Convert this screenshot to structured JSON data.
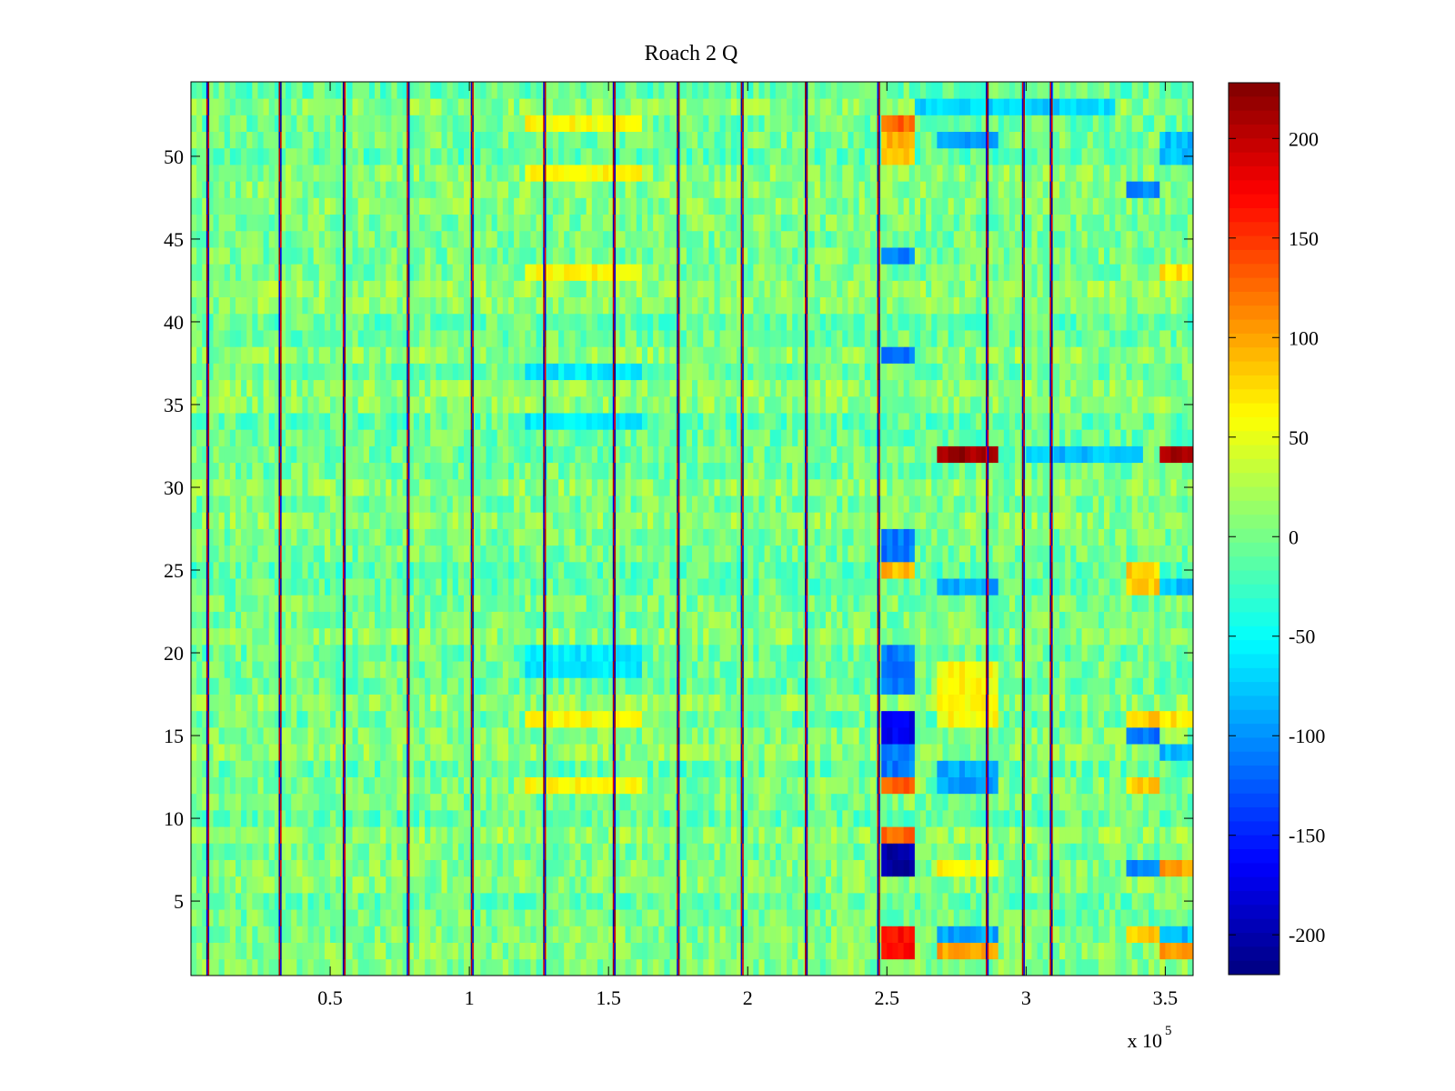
{
  "chart_data": [
    {
      "type": "heatmap",
      "title": "Roach 2 Q",
      "xlabel": "",
      "ylabel": "",
      "x_range": [
        0,
        360000
      ],
      "y_range": [
        0.5,
        54.5
      ],
      "x_multiplier_label": "x 10",
      "x_multiplier_exponent": "5",
      "x_ticks": [
        {
          "value": 0.5,
          "label": "0.5"
        },
        {
          "value": 1,
          "label": "1"
        },
        {
          "value": 1.5,
          "label": "1.5"
        },
        {
          "value": 2,
          "label": "2"
        },
        {
          "value": 2.5,
          "label": "2.5"
        },
        {
          "value": 3,
          "label": "3"
        },
        {
          "value": 3.5,
          "label": "3.5"
        }
      ],
      "y_ticks": [
        {
          "value": 5,
          "label": "5"
        },
        {
          "value": 10,
          "label": "10"
        },
        {
          "value": 15,
          "label": "15"
        },
        {
          "value": 20,
          "label": "20"
        },
        {
          "value": 25,
          "label": "25"
        },
        {
          "value": 30,
          "label": "30"
        },
        {
          "value": 35,
          "label": "35"
        },
        {
          "value": 40,
          "label": "40"
        },
        {
          "value": 45,
          "label": "45"
        },
        {
          "value": 50,
          "label": "50"
        }
      ],
      "channels": 54,
      "background_value": 0,
      "vertical_stripes_x": [
        0.06,
        0.32,
        0.55,
        0.78,
        1.01,
        1.27,
        1.52,
        1.75,
        1.98,
        2.21,
        2.47,
        2.86,
        2.99,
        3.09
      ],
      "bands": [
        {
          "x": [
            1.2,
            1.6
          ],
          "rows": [
            52,
            49,
            43,
            16,
            12
          ],
          "value": 60
        },
        {
          "x": [
            1.2,
            1.6
          ],
          "rows": [
            37,
            19,
            20,
            34
          ],
          "value": -60
        },
        {
          "x": [
            2.48,
            2.57
          ],
          "rows": [
            50,
            51,
            25
          ],
          "value": 90
        },
        {
          "x": [
            2.48,
            2.57
          ],
          "rows": [
            12,
            9,
            52
          ],
          "value": 130
        },
        {
          "x": [
            2.48,
            2.57
          ],
          "rows": [
            2,
            3
          ],
          "value": 170
        },
        {
          "x": [
            2.48,
            2.57
          ],
          "rows": [
            16,
            15
          ],
          "value": -170
        },
        {
          "x": [
            2.48,
            2.57
          ],
          "rows": [
            7,
            8
          ],
          "value": -200
        },
        {
          "x": [
            2.48,
            2.57
          ],
          "rows": [
            20,
            19,
            18,
            13,
            14,
            26,
            27,
            44,
            38
          ],
          "value": -110
        },
        {
          "x": [
            2.68,
            2.87
          ],
          "rows": [
            32
          ],
          "value": 215
        },
        {
          "x": [
            3.48,
            3.6
          ],
          "rows": [
            32
          ],
          "value": 215
        },
        {
          "x": [
            2.68,
            2.87
          ],
          "rows": [
            2
          ],
          "value": 100
        },
        {
          "x": [
            3.48,
            3.6
          ],
          "rows": [
            2,
            7
          ],
          "value": 100
        },
        {
          "x": [
            2.68,
            2.87
          ],
          "rows": [
            7,
            16,
            17,
            18,
            19
          ],
          "value": 60
        },
        {
          "x": [
            2.68,
            2.87
          ],
          "rows": [
            3,
            12,
            13,
            24,
            51
          ],
          "value": -90
        },
        {
          "x": [
            2.6,
            3.3
          ],
          "rows": [
            53
          ],
          "value": -70
        },
        {
          "x": [
            3.37,
            3.45
          ],
          "rows": [
            15,
            7,
            48
          ],
          "value": -110
        },
        {
          "x": [
            3.37,
            3.45
          ],
          "rows": [
            24,
            25,
            12,
            16,
            3
          ],
          "value": 80
        },
        {
          "x": [
            3.48,
            3.6
          ],
          "rows": [
            16,
            43
          ],
          "value": 70
        },
        {
          "x": [
            3.48,
            3.6
          ],
          "rows": [
            51,
            50,
            3,
            14,
            24
          ],
          "value": -80
        },
        {
          "x": [
            3.0,
            3.4
          ],
          "rows": [
            32
          ],
          "value": -80
        }
      ],
      "colorbar": {
        "colormap": "jet",
        "range": [
          -220,
          228
        ],
        "ticks": [
          {
            "value": 200,
            "label": "200"
          },
          {
            "value": 150,
            "label": "150"
          },
          {
            "value": 100,
            "label": "100"
          },
          {
            "value": 50,
            "label": "50"
          },
          {
            "value": 0,
            "label": "0"
          },
          {
            "value": -50,
            "label": "-50"
          },
          {
            "value": -100,
            "label": "-100"
          },
          {
            "value": -150,
            "label": "-150"
          },
          {
            "value": -200,
            "label": "-200"
          }
        ]
      }
    }
  ]
}
